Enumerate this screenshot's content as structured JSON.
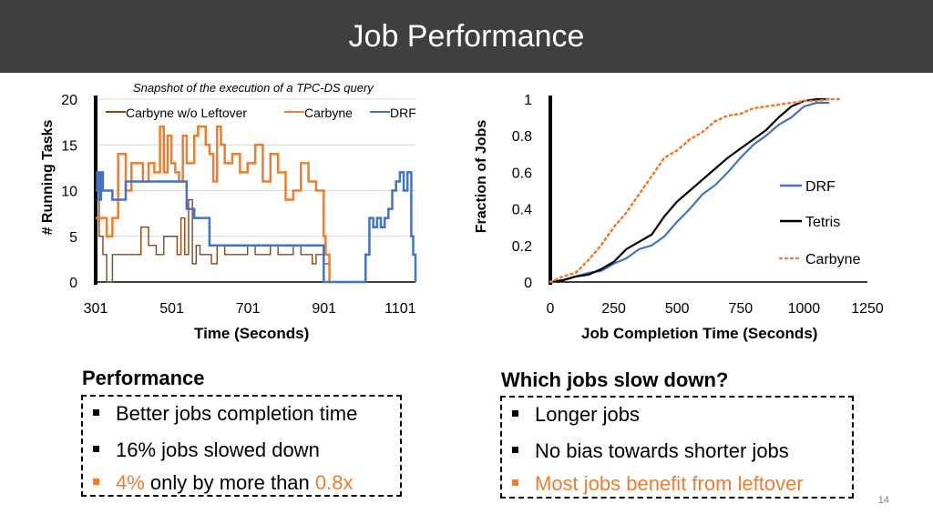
{
  "slide": {
    "title": "Job Performance",
    "page_number": "14"
  },
  "left_chart": {
    "subtitle": "Snapshot of the execution of a TPC-DS query",
    "ylabel": "# Running Tasks",
    "xlabel": "Time (Seconds)",
    "yticks": [
      "0",
      "5",
      "10",
      "15",
      "20"
    ],
    "xticks": [
      "301",
      "501",
      "701",
      "901",
      "1101"
    ],
    "legend": [
      "Carbyne w/o Leftover",
      "Carbyne",
      "DRF"
    ],
    "colors": {
      "leftover": "#8b4513",
      "carbyne": "#ed7d31",
      "drf": "#4472c4"
    }
  },
  "right_chart": {
    "ylabel": "Fraction of Jobs",
    "xlabel": "Job Completion Time (Seconds)",
    "yticks": [
      "0",
      "0.2",
      "0.4",
      "0.6",
      "0.8",
      "1"
    ],
    "xticks": [
      "0",
      "250",
      "500",
      "750",
      "1000",
      "1250"
    ],
    "legend": [
      "DRF",
      "Tetris",
      "Carbyne"
    ],
    "colors": {
      "drf": "#4472c4",
      "tetris": "#000000",
      "carbyne": "#ed7d31"
    }
  },
  "chart_data": [
    {
      "type": "line",
      "title": "Snapshot of the execution of a TPC-DS query",
      "xlabel": "Time (Seconds)",
      "ylabel": "# Running Tasks",
      "xlim": [
        301,
        1141
      ],
      "ylim": [
        0,
        20
      ],
      "series": [
        {
          "name": "Carbyne w/o Leftover",
          "x": [
            301,
            310,
            320,
            330,
            345,
            360,
            380,
            400,
            420,
            440,
            460,
            480,
            500,
            515,
            525,
            535,
            545,
            555,
            565,
            575,
            590,
            605,
            620,
            640,
            660,
            680,
            700,
            720,
            740,
            760,
            780,
            800,
            820,
            840,
            860,
            870,
            880,
            890,
            900,
            910,
            915,
            920
          ],
          "y": [
            9,
            5,
            3,
            0,
            3,
            3,
            3,
            3,
            6,
            4,
            3,
            5,
            5,
            3,
            7,
            3,
            9,
            2,
            4,
            3,
            3,
            2,
            4,
            3,
            3,
            3,
            4,
            3,
            3,
            4,
            3,
            3,
            4,
            3,
            3,
            2,
            3,
            3,
            2,
            2,
            0,
            0
          ]
        },
        {
          "name": "Carbyne",
          "x": [
            301,
            310,
            320,
            330,
            345,
            360,
            380,
            395,
            410,
            425,
            440,
            455,
            470,
            480,
            490,
            500,
            510,
            520,
            530,
            540,
            550,
            560,
            570,
            580,
            590,
            600,
            610,
            620,
            630,
            640,
            660,
            680,
            700,
            720,
            740,
            760,
            780,
            800,
            820,
            840,
            860,
            880,
            900,
            905,
            910,
            915,
            920
          ],
          "y": [
            7,
            7,
            7,
            5,
            7,
            14,
            10,
            13,
            13,
            11,
            13,
            12,
            17,
            12,
            16,
            13,
            12,
            11,
            16,
            13,
            13,
            16,
            17,
            17,
            15,
            14,
            11,
            17,
            15,
            13,
            14,
            12,
            13,
            15,
            11,
            14,
            12,
            9,
            10,
            13,
            11,
            10,
            5,
            3,
            3,
            0,
            0
          ]
        },
        {
          "name": "DRF",
          "x": [
            301,
            305,
            310,
            315,
            320,
            330,
            345,
            360,
            380,
            400,
            420,
            440,
            460,
            480,
            500,
            520,
            540,
            560,
            580,
            600,
            620,
            640,
            660,
            680,
            700,
            720,
            740,
            760,
            780,
            800,
            820,
            840,
            860,
            880,
            900,
            920,
            940,
            960,
            980,
            1000,
            1010,
            1020,
            1030,
            1040,
            1050,
            1060,
            1070,
            1080,
            1090,
            1100,
            1110,
            1120,
            1130,
            1135,
            1141
          ],
          "y": [
            10,
            12,
            9,
            12,
            10,
            10,
            9,
            9,
            11,
            11,
            11,
            11,
            11,
            11,
            11,
            11,
            8,
            7,
            7,
            4,
            4,
            4,
            4,
            4,
            4,
            4,
            4,
            4,
            4,
            4,
            4,
            4,
            4,
            4,
            0,
            0,
            0,
            0,
            0,
            0,
            3,
            7,
            6,
            7,
            6,
            7,
            8,
            10,
            11,
            12,
            10,
            12,
            5,
            3,
            0
          ]
        }
      ]
    },
    {
      "type": "line",
      "xlabel": "Job Completion Time (Seconds)",
      "ylabel": "Fraction of Jobs",
      "xlim": [
        0,
        1250
      ],
      "ylim": [
        0,
        1
      ],
      "series": [
        {
          "name": "DRF",
          "x": [
            0,
            50,
            100,
            150,
            200,
            250,
            300,
            350,
            400,
            450,
            500,
            550,
            600,
            650,
            700,
            750,
            800,
            850,
            900,
            950,
            1000,
            1050,
            1100
          ],
          "y": [
            0,
            0.01,
            0.03,
            0.05,
            0.06,
            0.1,
            0.13,
            0.18,
            0.2,
            0.25,
            0.33,
            0.4,
            0.48,
            0.53,
            0.6,
            0.68,
            0.75,
            0.8,
            0.86,
            0.9,
            0.96,
            0.98,
            0.98
          ]
        },
        {
          "name": "Tetris",
          "x": [
            0,
            50,
            100,
            150,
            200,
            250,
            300,
            350,
            400,
            450,
            500,
            550,
            600,
            650,
            700,
            750,
            800,
            850,
            900,
            950,
            1000,
            1050,
            1100
          ],
          "y": [
            0,
            0.01,
            0.03,
            0.04,
            0.07,
            0.11,
            0.18,
            0.22,
            0.26,
            0.36,
            0.44,
            0.5,
            0.56,
            0.62,
            0.68,
            0.73,
            0.78,
            0.83,
            0.9,
            0.96,
            0.99,
            1,
            1
          ]
        },
        {
          "name": "Carbyne",
          "x": [
            0,
            50,
            100,
            150,
            200,
            250,
            300,
            350,
            400,
            450,
            500,
            550,
            600,
            650,
            700,
            750,
            800,
            850,
            900,
            950,
            1000,
            1050,
            1100,
            1150
          ],
          "y": [
            0,
            0.03,
            0.05,
            0.12,
            0.2,
            0.3,
            0.38,
            0.48,
            0.58,
            0.68,
            0.72,
            0.78,
            0.82,
            0.88,
            0.91,
            0.92,
            0.95,
            0.96,
            0.97,
            0.98,
            0.99,
            0.99,
            1,
            1
          ]
        }
      ]
    }
  ],
  "left_panel": {
    "heading": "Performance",
    "bullet1": "Better jobs completion time",
    "bullet2": "16% jobs slowed down",
    "bullet3_highlight": "4%",
    "bullet3_middle": " only by more than ",
    "bullet3_tail": "0.8x"
  },
  "right_panel": {
    "heading": "Which jobs slow down?",
    "bullet1": "Longer jobs",
    "bullet2": "No bias towards shorter jobs",
    "bullet3": "Most jobs benefit from leftover"
  }
}
